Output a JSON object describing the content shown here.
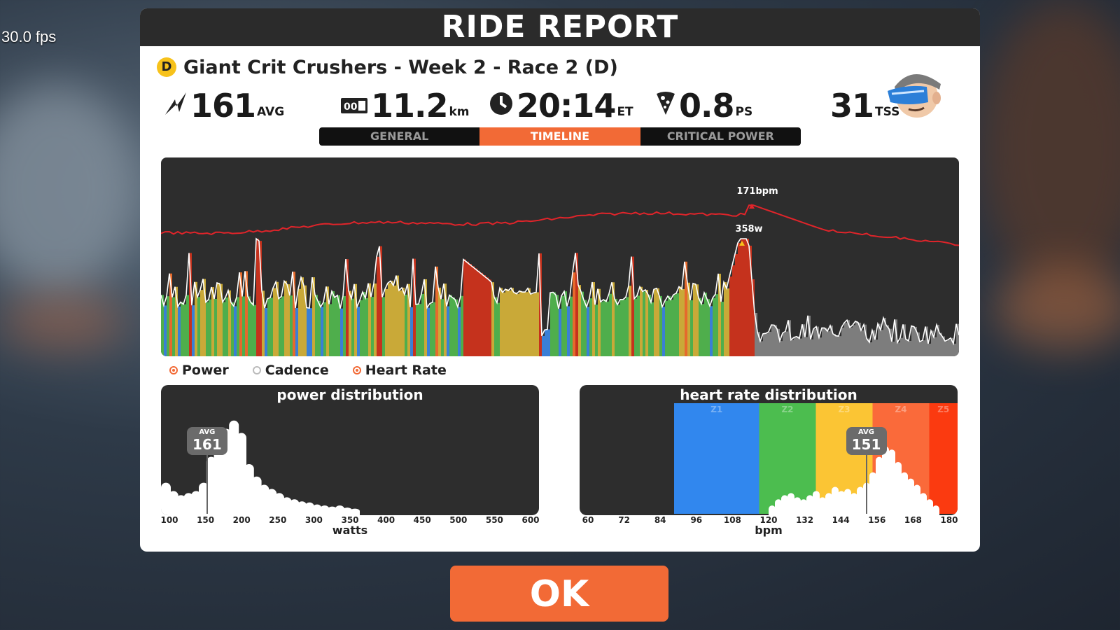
{
  "overlay": {
    "fps": "30.0 fps"
  },
  "window": {
    "title": "RIDE REPORT"
  },
  "race": {
    "category": "D",
    "name": "Giant Crit Crushers - Week 2 - Race 2 (D)"
  },
  "stats": {
    "power": {
      "value": "161",
      "unit": "AVG"
    },
    "distance": {
      "value": "11.2",
      "unit": "km"
    },
    "time": {
      "value": "20:14",
      "unit": "ET"
    },
    "pizza": {
      "value": "0.8",
      "unit": "PS"
    },
    "tss": {
      "value": "31",
      "unit": "TSS"
    }
  },
  "tabs": [
    {
      "label": "GENERAL",
      "active": false
    },
    {
      "label": "TIMELINE",
      "active": true
    },
    {
      "label": "CRITICAL POWER",
      "active": false
    }
  ],
  "timeline": {
    "hr_peak_label": "171bpm",
    "power_peak_label": "358w",
    "hr_color": "#e0242a",
    "power_zone_colors": [
      "#7d7d7d",
      "#3a7fd6",
      "#4fae4c",
      "#c9a938",
      "#e56a2c",
      "#c5321d"
    ]
  },
  "legend": [
    {
      "label": "Power",
      "on": true
    },
    {
      "label": "Cadence",
      "on": false
    },
    {
      "label": "Heart Rate",
      "on": true
    }
  ],
  "power_distribution": {
    "title": "power distribution",
    "avg_label": "AVG",
    "avg": 161,
    "xlabel": "watts",
    "ticks": [
      "100",
      "150",
      "200",
      "250",
      "300",
      "350",
      "400",
      "450",
      "500",
      "550",
      "600"
    ],
    "x_range": [
      100,
      600
    ],
    "bins": [
      [
        100,
        0.3
      ],
      [
        110,
        0.22
      ],
      [
        120,
        0.18
      ],
      [
        130,
        0.2
      ],
      [
        140,
        0.22
      ],
      [
        150,
        0.3
      ],
      [
        160,
        0.55
      ],
      [
        170,
        0.7
      ],
      [
        180,
        0.82
      ],
      [
        190,
        0.9
      ],
      [
        200,
        0.78
      ],
      [
        210,
        0.48
      ],
      [
        220,
        0.36
      ],
      [
        230,
        0.28
      ],
      [
        240,
        0.24
      ],
      [
        250,
        0.2
      ],
      [
        260,
        0.16
      ],
      [
        270,
        0.14
      ],
      [
        280,
        0.12
      ],
      [
        290,
        0.11
      ],
      [
        300,
        0.09
      ],
      [
        310,
        0.08
      ],
      [
        320,
        0.07
      ],
      [
        330,
        0.08
      ],
      [
        340,
        0.06
      ],
      [
        350,
        0.05
      ]
    ]
  },
  "hr_distribution": {
    "title": "heart rate distribution",
    "avg_label": "AVG",
    "avg": 151,
    "xlabel": "bpm",
    "ticks": [
      "60",
      "72",
      "84",
      "96",
      "108",
      "120",
      "132",
      "144",
      "156",
      "168",
      "180"
    ],
    "x_range": [
      60,
      180
    ],
    "zones": [
      {
        "label": "Z1",
        "from": 90,
        "to": 117,
        "color": "#3187ee"
      },
      {
        "label": "Z2",
        "from": 117,
        "to": 135,
        "color": "#4cbd4f"
      },
      {
        "label": "Z3",
        "from": 135,
        "to": 153,
        "color": "#fbc534"
      },
      {
        "label": "Z4",
        "from": 153,
        "to": 171,
        "color": "#fa6a3a"
      },
      {
        "label": "Z5",
        "from": 171,
        "to": 180,
        "color": "#fb3a10"
      }
    ],
    "bins": [
      [
        120,
        0.08
      ],
      [
        122,
        0.14
      ],
      [
        124,
        0.18
      ],
      [
        126,
        0.2
      ],
      [
        128,
        0.16
      ],
      [
        130,
        0.14
      ],
      [
        132,
        0.18
      ],
      [
        134,
        0.22
      ],
      [
        136,
        0.16
      ],
      [
        138,
        0.2
      ],
      [
        140,
        0.26
      ],
      [
        142,
        0.22
      ],
      [
        144,
        0.24
      ],
      [
        146,
        0.2
      ],
      [
        148,
        0.26
      ],
      [
        150,
        0.3
      ],
      [
        152,
        0.4
      ],
      [
        154,
        0.55
      ],
      [
        156,
        0.65
      ],
      [
        158,
        0.62
      ],
      [
        160,
        0.5
      ],
      [
        162,
        0.4
      ],
      [
        164,
        0.34
      ],
      [
        166,
        0.28
      ],
      [
        168,
        0.2
      ],
      [
        170,
        0.14
      ],
      [
        172,
        0.08
      ]
    ]
  },
  "ok_button": {
    "label": "OK"
  }
}
